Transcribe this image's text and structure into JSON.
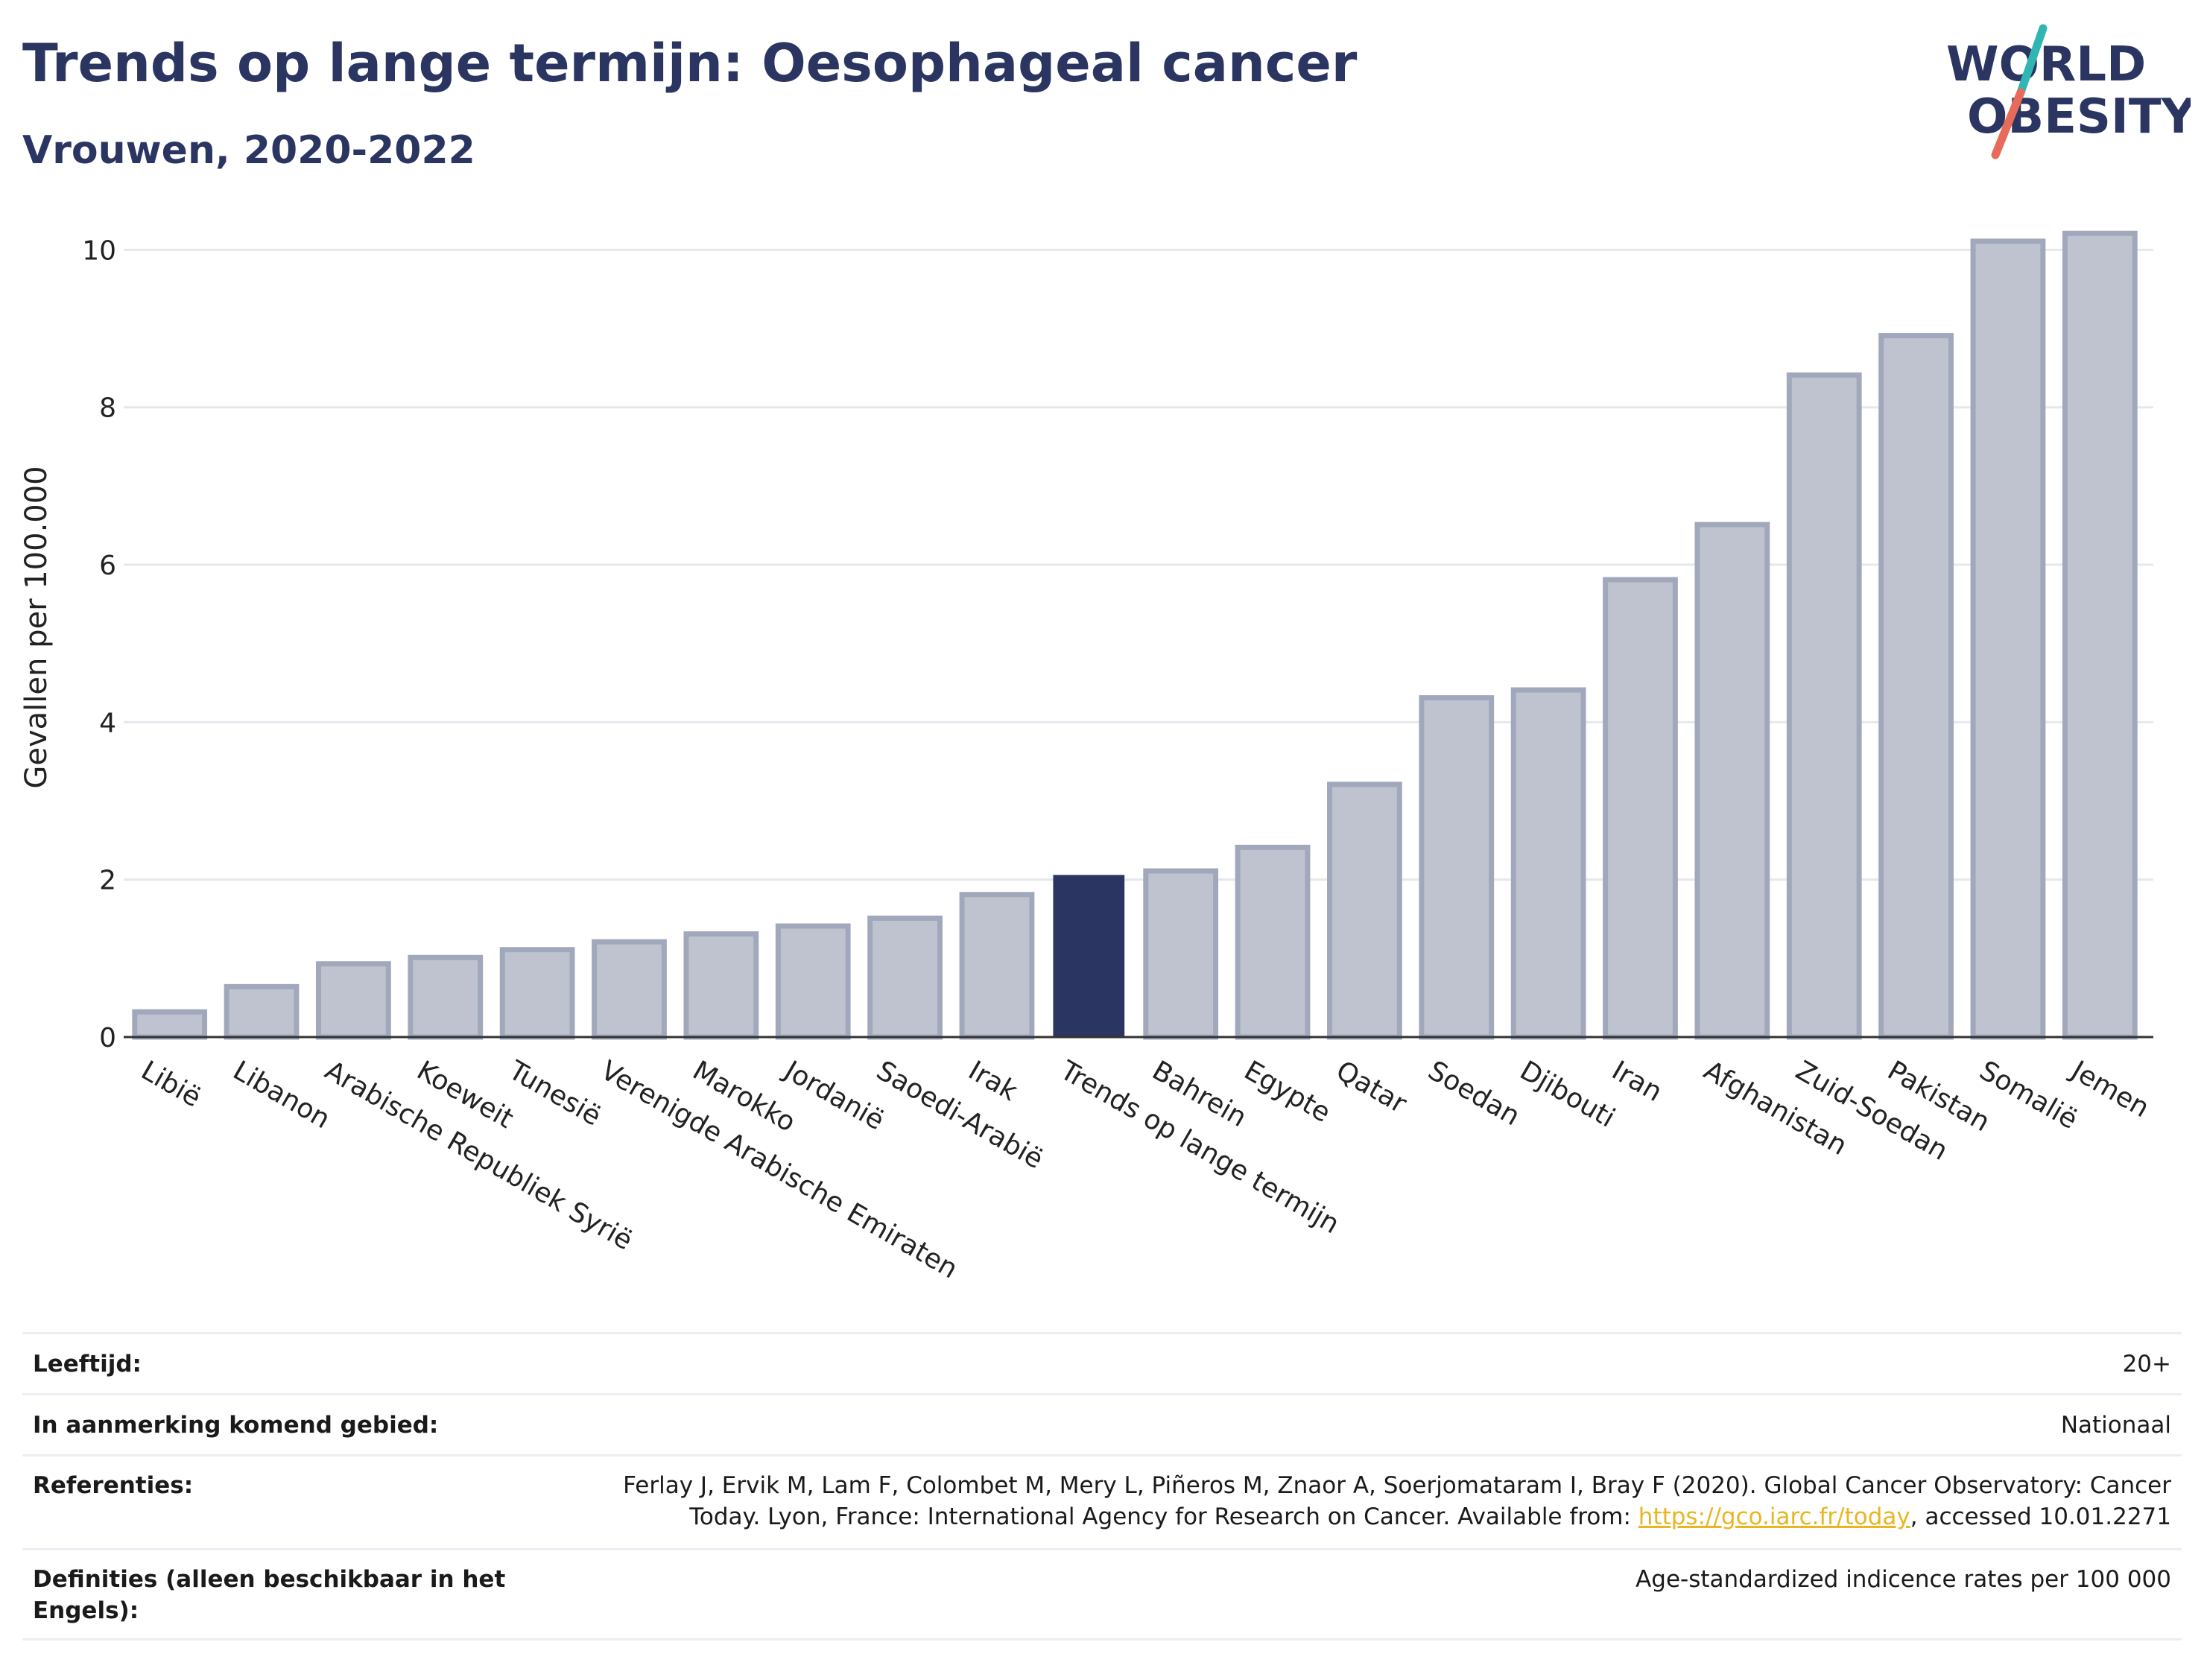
{
  "header": {
    "title": "Trends op lange termijn: Oesophageal cancer",
    "subtitle": "Vrouwen, 2020-2022"
  },
  "logo": {
    "line1": "WORLD",
    "line2": "OBESITY",
    "colors": {
      "slash_top": "#2fb5b2",
      "slash_bottom": "#e86a5a",
      "text": "#2b3561"
    }
  },
  "chart_data": {
    "type": "bar",
    "ylabel": "Gevallen per 100.000",
    "ylim": [
      0,
      10.6
    ],
    "yticks": [
      0,
      2,
      4,
      6,
      8,
      10
    ],
    "grid": true,
    "categories": [
      "Libië",
      "Libanon",
      "Arabische Republiek Syrië",
      "Koeweit",
      "Tunesië",
      "Verenigde Arabische Emiraten",
      "Marokko",
      "Jordanië",
      "Saoedi-Arabië",
      "Irak",
      "Trends op lange termijn",
      "Bahrein",
      "Egypte",
      "Qatar",
      "Soedan",
      "Djibouti",
      "Iran",
      "Afghanistan",
      "Zuid-Soedan",
      "Pakistan",
      "Somalië",
      "Jemen"
    ],
    "values": [
      0.32,
      0.64,
      0.93,
      1.01,
      1.11,
      1.21,
      1.31,
      1.41,
      1.51,
      1.81,
      2.05,
      2.11,
      2.41,
      3.21,
      4.31,
      4.41,
      5.81,
      6.51,
      8.41,
      8.91,
      10.11,
      10.21
    ],
    "highlight": "Trends op lange termijn",
    "colors": {
      "bar": "#bfc3d0",
      "bar_edge": "#a2a8bc",
      "highlight": "#2b3561"
    }
  },
  "info": [
    {
      "label": "Leeftijd:",
      "value": "20+"
    },
    {
      "label": "In aanmerking komend gebied:",
      "value": "Nationaal"
    },
    {
      "label": "Referenties:",
      "value_before": "Ferlay J, Ervik M, Lam F, Colombet M, Mery L, Piñeros M, Znaor A, Soerjomataram I, Bray F (2020). Global Cancer Observatory: Cancer Today. Lyon, France: International Agency for Research on Cancer. Available from: ",
      "link": "https://gco.iarc.fr/today",
      "value_after": ", accessed 10.01.2271"
    },
    {
      "label": "Definities (alleen beschikbaar in het Engels):",
      "value": "Age-standardized indicence rates per 100 000"
    }
  ]
}
